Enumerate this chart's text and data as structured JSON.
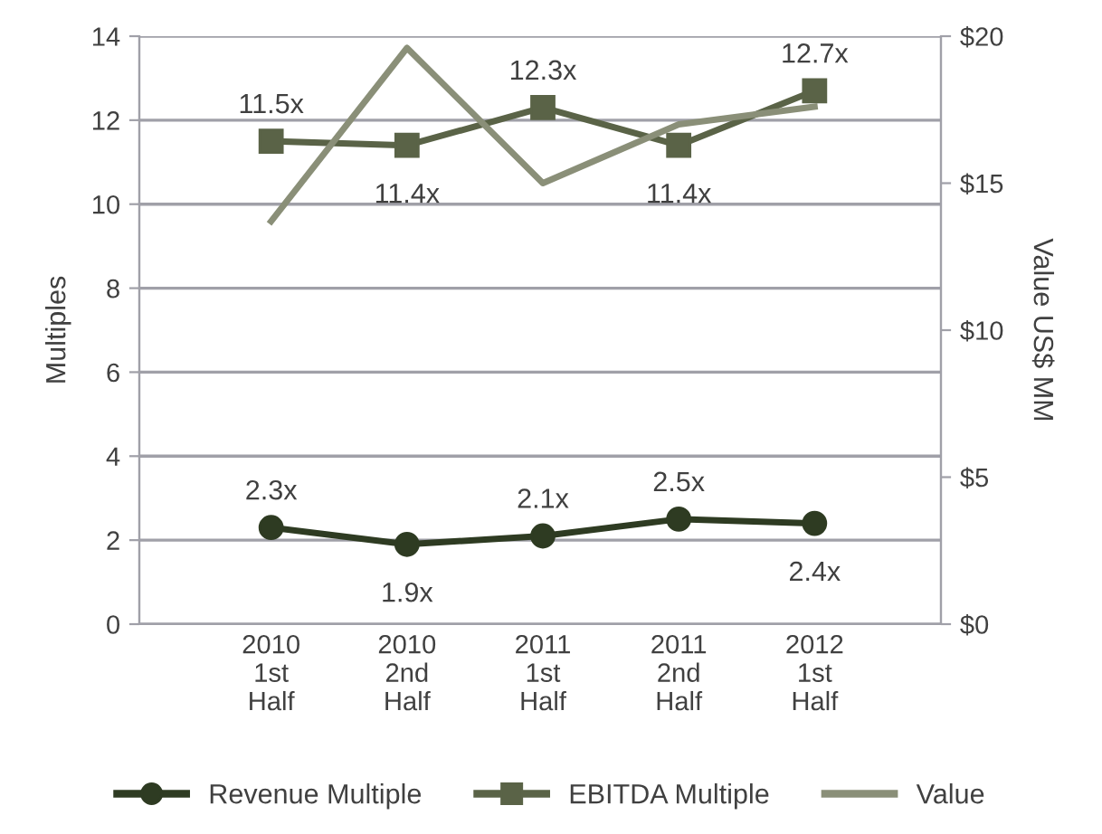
{
  "chart_data": {
    "type": "line",
    "ylabel": "Multiples",
    "y2label": "Value US$ MM",
    "categories": [
      "2010\n1st\nHalf",
      "2010\n2nd\nHalf",
      "2011\n1st\nHalf",
      "2011\n2nd\nHalf",
      "2012\n1st\nHalf"
    ],
    "series": [
      {
        "name": "Revenue Multiple",
        "color": "#2e3b22",
        "marker": "circle",
        "values": [
          2.3,
          1.9,
          2.1,
          2.5,
          2.4
        ],
        "value_labels": [
          "2.3x",
          "1.9x",
          "2.1x",
          "2.5x",
          "2.4x"
        ]
      },
      {
        "name": "EBITDA Multiple",
        "color": "#5a6347",
        "marker": "square",
        "values": [
          11.5,
          11.4,
          12.3,
          11.4,
          12.7
        ],
        "value_labels": [
          "11.5x",
          "11.4x",
          "12.3x",
          "11.4x",
          "12.7x"
        ]
      },
      {
        "name": "Value",
        "color": "#8a8f78",
        "marker": "none",
        "axis": "y2",
        "values": [
          13.7,
          19.6,
          15.0,
          17.0,
          17.6
        ]
      }
    ],
    "ylim": [
      0,
      14
    ],
    "yticks": [
      0,
      2,
      4,
      6,
      8,
      10,
      12,
      14
    ],
    "y2lim": [
      0,
      20
    ],
    "y2ticks": [
      {
        "value": 0,
        "label": "$0"
      },
      {
        "value": 5,
        "label": "$5"
      },
      {
        "value": 10,
        "label": "$10"
      },
      {
        "value": 15,
        "label": "$15"
      },
      {
        "value": 20,
        "label": "$20"
      }
    ],
    "grid": "y",
    "legend": "bottom"
  }
}
